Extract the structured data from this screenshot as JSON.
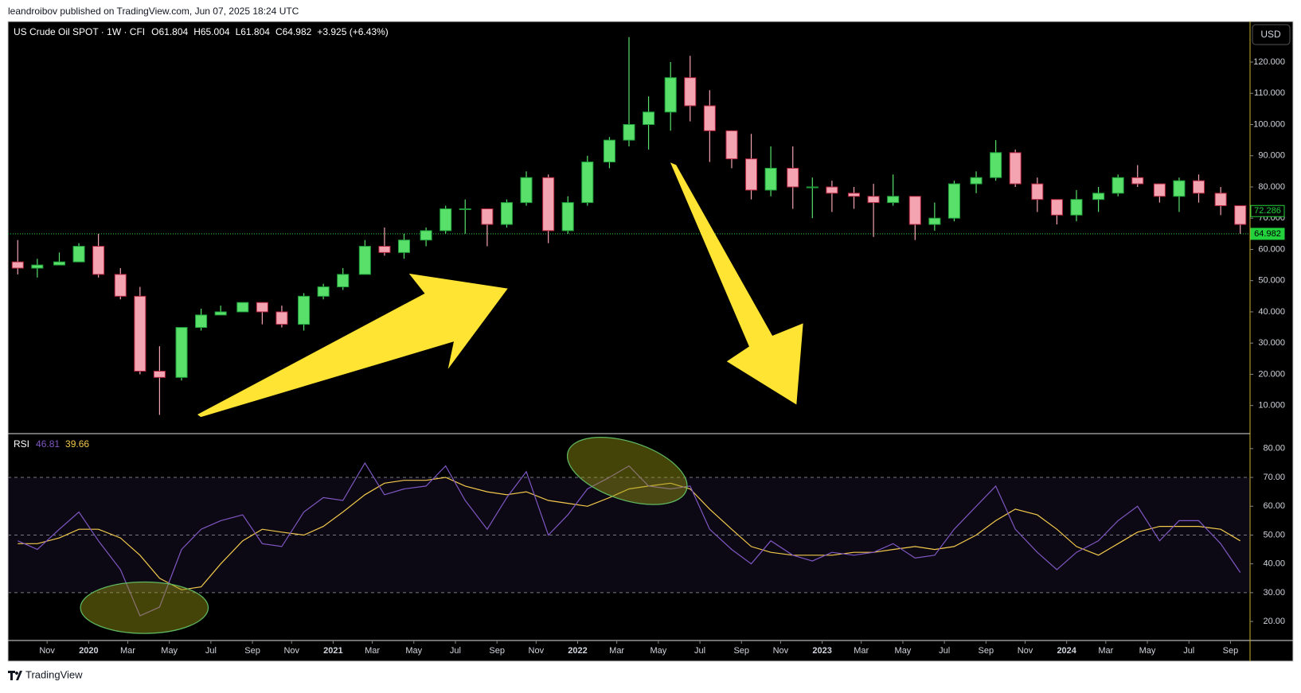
{
  "header": {
    "text": "leandroibov published on TradingView.com, Jun 07, 2025 18:24 UTC"
  },
  "footer": {
    "text": "TradingView"
  },
  "currency": "USD",
  "chart_data": [
    {
      "type": "candlestick",
      "title": "US Crude Oil SPOT · 1W · CFI",
      "ohlc_labels": [
        "O61.804",
        "H65.004",
        "L61.804",
        "C64.982",
        "+3.925 (+6.43%)"
      ],
      "up_color": "#58e06a",
      "down_color": "#f4a3b0",
      "up_border": "#1f9d3a",
      "down_border": "#b3243f",
      "x": [
        2019.71,
        2019.79,
        2019.88,
        2019.96,
        2020.04,
        2020.13,
        2020.21,
        2020.29,
        2020.38,
        2020.46,
        2020.54,
        2020.63,
        2020.71,
        2020.79,
        2020.88,
        2020.96,
        2021.04,
        2021.13,
        2021.21,
        2021.29,
        2021.38,
        2021.46,
        2021.54,
        2021.63,
        2021.71,
        2021.79,
        2021.88,
        2021.96,
        2022.04,
        2022.13,
        2022.21,
        2022.29,
        2022.38,
        2022.46,
        2022.54,
        2022.63,
        2022.71,
        2022.79,
        2022.88,
        2022.96,
        2023.04,
        2023.13,
        2023.21,
        2023.29,
        2023.38,
        2023.46,
        2023.54,
        2023.63,
        2023.71,
        2023.79,
        2023.88,
        2023.96,
        2024.04,
        2024.13,
        2024.21,
        2024.29,
        2024.38,
        2024.46,
        2024.54,
        2024.63,
        2024.71
      ],
      "open": [
        56,
        54,
        55,
        56,
        61,
        52,
        45,
        21,
        19,
        35,
        39,
        40,
        43,
        40,
        36,
        45,
        48,
        52,
        61,
        59,
        63,
        66,
        73,
        73,
        68,
        75,
        83,
        66,
        75,
        88,
        95,
        100,
        104,
        115,
        106,
        98,
        89,
        79,
        86,
        80,
        80,
        78,
        77,
        75,
        77,
        68,
        70,
        81,
        83,
        91,
        81,
        76,
        71,
        76,
        78,
        83,
        81,
        77,
        82,
        78,
        74
      ],
      "high": [
        63,
        57,
        59,
        62,
        65,
        54,
        48,
        29,
        35,
        41,
        42,
        43,
        43,
        42,
        46,
        49,
        54,
        63,
        67,
        65,
        67,
        74,
        76,
        73,
        76,
        85,
        84,
        77,
        90,
        96,
        128,
        109,
        120,
        122,
        111,
        98,
        97,
        93,
        93,
        83,
        82,
        80,
        81,
        84,
        77,
        75,
        82,
        85,
        95,
        92,
        83,
        76,
        79,
        80,
        84,
        87,
        81,
        83,
        84,
        80,
        74
      ],
      "low": [
        52,
        51,
        55,
        56,
        51,
        44,
        20,
        7,
        18,
        34,
        39,
        40,
        36,
        35,
        34,
        44,
        47,
        52,
        58,
        57,
        61,
        65,
        65,
        61,
        67,
        74,
        62,
        65,
        74,
        86,
        93,
        92,
        98,
        101,
        88,
        86,
        76,
        77,
        73,
        70,
        72,
        73,
        64,
        74,
        63,
        66,
        69,
        78,
        82,
        80,
        72,
        68,
        69,
        72,
        77,
        80,
        75,
        72,
        75,
        71,
        65
      ],
      "close": [
        54,
        55,
        56,
        61,
        52,
        45,
        21,
        19,
        35,
        39,
        40,
        43,
        40,
        36,
        45,
        48,
        52,
        61,
        59,
        63,
        66,
        73,
        73,
        68,
        75,
        83,
        66,
        75,
        88,
        95,
        100,
        104,
        115,
        106,
        98,
        89,
        79,
        86,
        80,
        80,
        78,
        77,
        75,
        77,
        68,
        70,
        81,
        83,
        91,
        81,
        76,
        71,
        76,
        78,
        83,
        81,
        77,
        82,
        78,
        74,
        68
      ],
      "xlim": [
        2019.67,
        2024.75
      ],
      "ylim": [
        1,
        133
      ],
      "yticks": [
        {
          "value": 10,
          "label": "10.000"
        },
        {
          "value": 20,
          "label": "20.000"
        },
        {
          "value": 30,
          "label": "30.000"
        },
        {
          "value": 40,
          "label": "40.000"
        },
        {
          "value": 50,
          "label": "50.000"
        },
        {
          "value": 60,
          "label": "60.000"
        },
        {
          "value": 70,
          "label": "70.000"
        },
        {
          "value": 80,
          "label": "80.000"
        },
        {
          "value": 90,
          "label": "90.000"
        },
        {
          "value": 100,
          "label": "100.000"
        },
        {
          "value": 110,
          "label": "110.000"
        },
        {
          "value": 120,
          "label": "120.000"
        }
      ],
      "price_labels": [
        {
          "value": 72.286,
          "label": "72.286"
        },
        {
          "value": 64.982,
          "label": "64.982"
        }
      ],
      "price_label_color": "#22d13c"
    },
    {
      "type": "line",
      "title": "RSI",
      "legend_values": [
        "46.81",
        "39.66"
      ],
      "x": [
        2019.71,
        2019.79,
        2019.88,
        2019.96,
        2020.04,
        2020.13,
        2020.21,
        2020.29,
        2020.38,
        2020.46,
        2020.54,
        2020.63,
        2020.71,
        2020.79,
        2020.88,
        2020.96,
        2021.04,
        2021.13,
        2021.21,
        2021.29,
        2021.38,
        2021.46,
        2021.54,
        2021.63,
        2021.71,
        2021.79,
        2021.88,
        2021.96,
        2022.04,
        2022.13,
        2022.21,
        2022.29,
        2022.38,
        2022.46,
        2022.54,
        2022.63,
        2022.71,
        2022.79,
        2022.88,
        2022.96,
        2023.04,
        2023.13,
        2023.21,
        2023.29,
        2023.38,
        2023.46,
        2023.54,
        2023.63,
        2023.71,
        2023.79,
        2023.88,
        2023.96,
        2024.04,
        2024.13,
        2024.21,
        2024.29,
        2024.38,
        2024.46,
        2024.54,
        2024.63,
        2024.71
      ],
      "series": [
        {
          "color": "#7e57c2",
          "values": [
            48,
            45,
            52,
            58,
            48,
            38,
            22,
            25,
            45,
            52,
            55,
            57,
            47,
            46,
            58,
            63,
            62,
            75,
            64,
            66,
            67,
            74,
            62,
            52,
            63,
            72,
            50,
            57,
            66,
            70,
            74,
            67,
            66,
            67,
            52,
            45,
            40,
            48,
            43,
            41,
            44,
            43,
            44,
            47,
            42,
            43,
            52,
            60,
            67,
            52,
            44,
            38,
            44,
            48,
            55,
            60,
            48,
            55,
            55,
            47,
            37
          ]
        },
        {
          "color": "#f2c94c",
          "values": [
            47,
            47,
            49,
            52,
            52,
            49,
            43,
            35,
            31,
            32,
            40,
            48,
            52,
            51,
            50,
            53,
            58,
            64,
            68,
            69,
            69,
            70,
            67,
            65,
            64,
            65,
            62,
            61,
            60,
            63,
            66,
            67,
            68,
            66,
            59,
            52,
            46,
            44,
            43,
            43,
            43,
            44,
            44,
            45,
            46,
            45,
            46,
            50,
            55,
            59,
            57,
            52,
            46,
            43,
            47,
            51,
            53,
            53,
            53,
            52,
            48
          ]
        }
      ],
      "band_lines": [
        70,
        50,
        30
      ],
      "xlim": [
        2019.67,
        2024.75
      ],
      "ylim": [
        13.4,
        85.2
      ],
      "yticks": [
        {
          "value": 20,
          "label": "20.00"
        },
        {
          "value": 30,
          "label": "30.00"
        },
        {
          "value": 40,
          "label": "40.00"
        },
        {
          "value": 50,
          "label": "50.00"
        },
        {
          "value": 60,
          "label": "60.00"
        },
        {
          "value": 70,
          "label": "70.00"
        },
        {
          "value": 80,
          "label": "80.00"
        }
      ],
      "xticks": [
        {
          "value": 2019.83,
          "label": "Nov"
        },
        2020,
        {
          "value": 2020.16,
          "label": "Mar"
        },
        {
          "value": 2020.33,
          "label": "May"
        },
        {
          "value": 2020.5,
          "label": "Jul"
        },
        {
          "value": 2020.67,
          "label": "Sep"
        },
        {
          "value": 2020.83,
          "label": "Nov"
        },
        2021,
        {
          "value": 2021.16,
          "label": "Mar"
        },
        {
          "value": 2021.33,
          "label": "May"
        },
        {
          "value": 2021.5,
          "label": "Jul"
        },
        {
          "value": 2021.67,
          "label": "Sep"
        },
        {
          "value": 2021.83,
          "label": "Nov"
        },
        2022,
        {
          "value": 2022.16,
          "label": "Mar"
        },
        {
          "value": 2022.33,
          "label": "May"
        },
        {
          "value": 2022.5,
          "label": "Jul"
        },
        {
          "value": 2022.67,
          "label": "Sep"
        },
        {
          "value": 2022.83,
          "label": "Nov"
        },
        2023,
        {
          "value": 2023.16,
          "label": "Mar"
        },
        {
          "value": 2023.33,
          "label": "May"
        },
        {
          "value": 2023.5,
          "label": "Jul"
        },
        {
          "value": 2023.67,
          "label": "Sep"
        },
        {
          "value": 2023.83,
          "label": "Nov"
        },
        2024,
        {
          "value": 2024.16,
          "label": "Mar"
        },
        {
          "value": 2024.33,
          "label": "May"
        },
        {
          "value": 2024.5,
          "label": "Jul"
        },
        {
          "value": 2024.67,
          "label": "Sep"
        }
      ]
    }
  ]
}
